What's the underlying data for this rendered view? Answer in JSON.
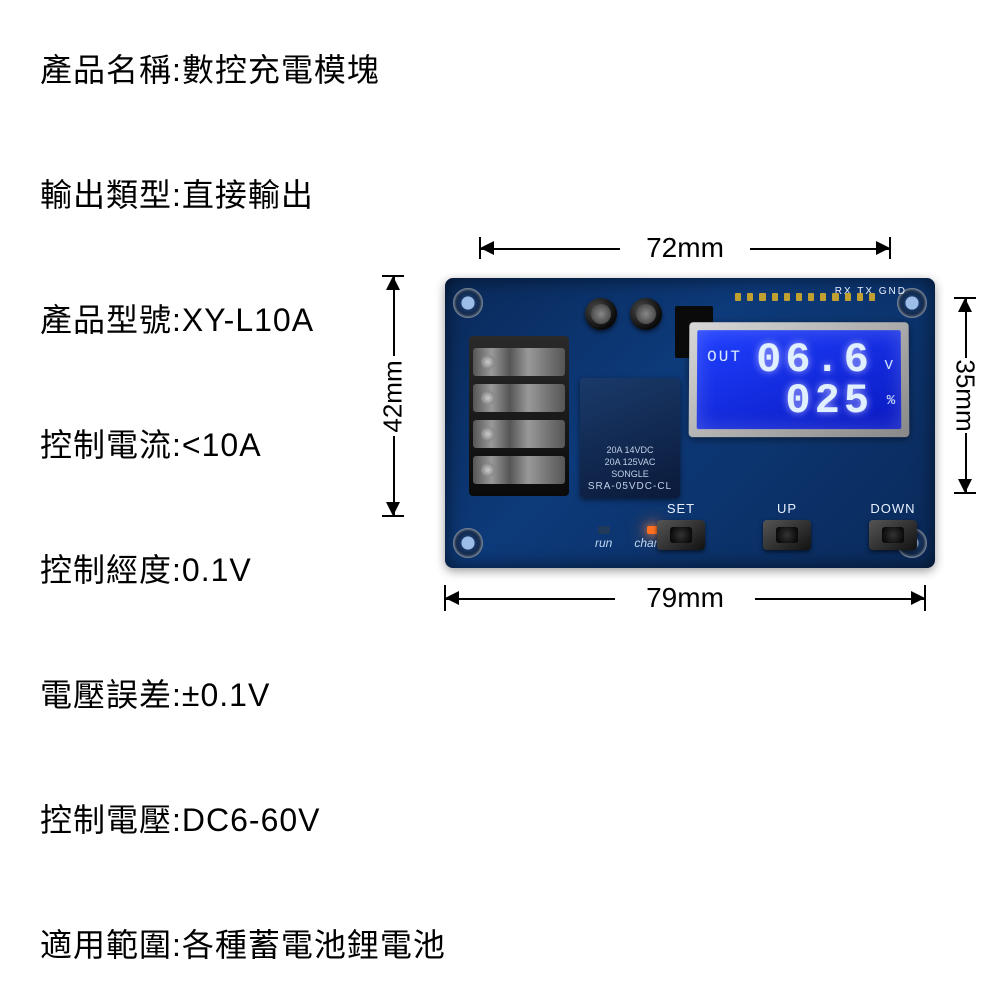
{
  "specs": [
    {
      "label": "產品名稱",
      "value": "數控充電模塊"
    },
    {
      "label": "輸出類型",
      "value": "直接輸出"
    },
    {
      "label": "產品型號",
      "value": "XY-L10A"
    },
    {
      "label": "控制電流",
      "value": "<10A"
    },
    {
      "label": "控制經度",
      "value": "0.1V"
    },
    {
      "label": "電壓誤差",
      "value": "±0.1V"
    },
    {
      "label": "控制電壓",
      "value": "DC6-60V"
    },
    {
      "label": "適用範圍",
      "value": "各種蓄電池鋰電池"
    }
  ],
  "dimensions": {
    "top": "72mm",
    "bottom": "79mm",
    "left": "42mm",
    "right": "35mm"
  },
  "lcd": {
    "out_label": "OUT",
    "voltage": "06.6",
    "voltage_unit": "V",
    "percent": "025",
    "percent_unit": "%"
  },
  "header_label": "RX TX GND",
  "relay": {
    "line1": "20A 14VDC",
    "line2": "20A 125VAC",
    "line3": "SONGLE",
    "model": "SRA-05VDC-CL"
  },
  "buttons": {
    "set": "SET",
    "up": "UP",
    "down": "DOWN"
  },
  "leds": {
    "run": "run",
    "charge": "charge"
  },
  "colors": {
    "pcb": "#0d3a7a",
    "lcd": "#1828e0",
    "lcd_text": "#e0f0ff"
  }
}
